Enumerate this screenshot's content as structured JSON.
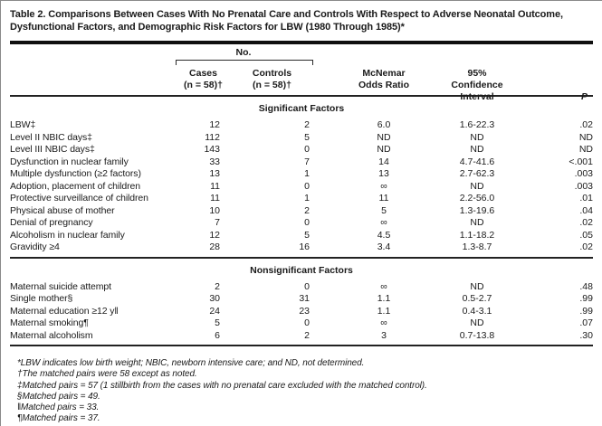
{
  "colors": {
    "background": "#ffffff",
    "ink": "#1a1a1a"
  },
  "table": {
    "title": "Table 2. Comparisons Between Cases With No Prenatal Care and Controls With Respect to Adverse Neonatal Outcome, Dysfunctional Factors, and Demographic Risk Factors for LBW (1980 Through 1985)*",
    "header": {
      "group_label": "No.",
      "columns": [
        {
          "line1": "",
          "line2": ""
        },
        {
          "line1": "Cases",
          "line2": "(n = 58)†"
        },
        {
          "line1": "Controls",
          "line2": "(n = 58)†"
        },
        {
          "line1": "McNemar",
          "line2": "Odds Ratio"
        },
        {
          "line1": "95% Confidence",
          "line2": "Interval"
        },
        {
          "line1": "P",
          "line2": ""
        }
      ]
    },
    "sections": [
      {
        "header": "Significant Factors",
        "rows": [
          [
            "LBW‡",
            "12",
            "2",
            "6.0",
            "1.6-22.3",
            ".02"
          ],
          [
            "Level II NBIC days‡",
            "112",
            "5",
            "ND",
            "ND",
            "ND"
          ],
          [
            "Level III NBIC days‡",
            "143",
            "0",
            "ND",
            "ND",
            "ND"
          ],
          [
            "Dysfunction in nuclear family",
            "33",
            "7",
            "14",
            "4.7-41.6",
            "<.001"
          ],
          [
            "Multiple dysfunction (≥2 factors)",
            "13",
            "1",
            "13",
            "2.7-62.3",
            ".003"
          ],
          [
            "Adoption, placement of children",
            "11",
            "0",
            "∞",
            "ND",
            ".003"
          ],
          [
            "Protective surveillance of children",
            "11",
            "1",
            "11",
            "2.2-56.0",
            ".01"
          ],
          [
            "Physical abuse of mother",
            "10",
            "2",
            "5",
            "1.3-19.6",
            ".04"
          ],
          [
            "Denial of pregnancy",
            "7",
            "0",
            "∞",
            "ND",
            ".02"
          ],
          [
            "Alcoholism in nuclear family",
            "12",
            "5",
            "4.5",
            "1.1-18.2",
            ".05"
          ],
          [
            "Gravidity ≥4",
            "28",
            "16",
            "3.4",
            "1.3-8.7",
            ".02"
          ]
        ]
      },
      {
        "header": "Nonsignificant Factors",
        "rows": [
          [
            "Maternal suicide attempt",
            "2",
            "0",
            "∞",
            "ND",
            ".48"
          ],
          [
            "Single mother§",
            "30",
            "31",
            "1.1",
            "0.5-2.7",
            ".99"
          ],
          [
            "Maternal education ≥12 y‖",
            "24",
            "23",
            "1.1",
            "0.4-3.1",
            ".99"
          ],
          [
            "Maternal smoking¶",
            "5",
            "0",
            "∞",
            "ND",
            ".07"
          ],
          [
            "Maternal alcoholism",
            "6",
            "2",
            "3",
            "0.7-13.8",
            ".30"
          ]
        ]
      }
    ],
    "footnotes": [
      "*LBW indicates low birth weight; NBIC, newborn intensive care; and ND, not determined.",
      "†The matched pairs were 58 except as noted.",
      "‡Matched pairs = 57 (1 stillbirth from the cases with no prenatal care excluded with the matched control).",
      "§Matched pairs = 49.",
      "‖Matched pairs = 33.",
      "¶Matched pairs = 37."
    ]
  }
}
